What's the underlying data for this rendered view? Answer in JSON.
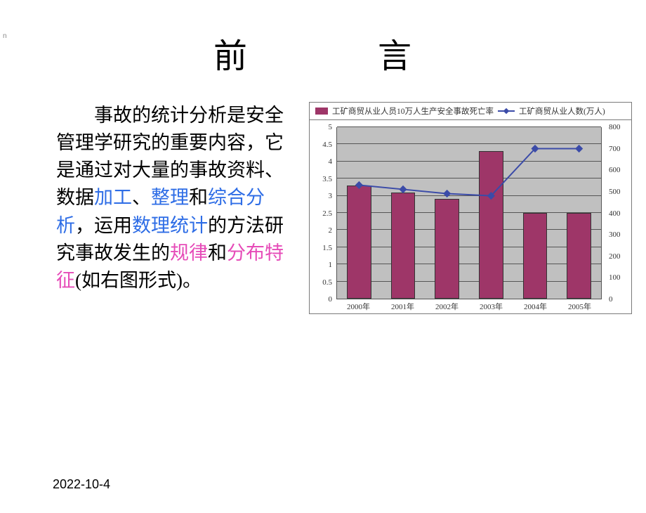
{
  "corner": "n",
  "title": "前　　言",
  "date": "2022-10-4",
  "paragraph": {
    "pre1": "事故的统计分析是安全管理学研究的重要内容，它是通过对大量的事故资料、数据",
    "kw1": "加工",
    "sep1": "、",
    "kw2": "整理",
    "sep2": "和",
    "kw3": "综合分析",
    "sep3": "，运用",
    "kw4": "数理统计",
    "post1": "的方法研究事故发生的",
    "kw5": "规律",
    "sep4": "和",
    "kw6": "分布特征",
    "post2": "(如右图形式)。"
  },
  "chart": {
    "type": "combo-bar-line",
    "legend": {
      "bar_label": "工矿商贸从业人员10万人生产安全事故死亡率",
      "line_label": "工矿商贸从业人数(万人)"
    },
    "plot_bg": "#c0c0c0",
    "bar_color": "#9e3668",
    "line_color": "#3b4ba8",
    "marker_color": "#3b4ba8",
    "grid_color": "#555555",
    "categories": [
      "2000年",
      "2001年",
      "2002年",
      "2003年",
      "2004年",
      "2005年"
    ],
    "bar_values": [
      3.3,
      3.1,
      2.9,
      4.3,
      2.5,
      2.5
    ],
    "line_values": [
      530,
      510,
      490,
      480,
      700,
      700
    ],
    "y_left": {
      "min": 0,
      "max": 5,
      "step": 0.5,
      "ticks": [
        "0",
        "0.5",
        "1",
        "1.5",
        "2",
        "2.5",
        "3",
        "3.5",
        "4",
        "4.5",
        "5"
      ]
    },
    "y_right": {
      "min": 0,
      "max": 800,
      "step": 100,
      "ticks": [
        "0",
        "100",
        "200",
        "300",
        "400",
        "500",
        "600",
        "700",
        "800"
      ]
    },
    "label_fontsize": 11
  }
}
